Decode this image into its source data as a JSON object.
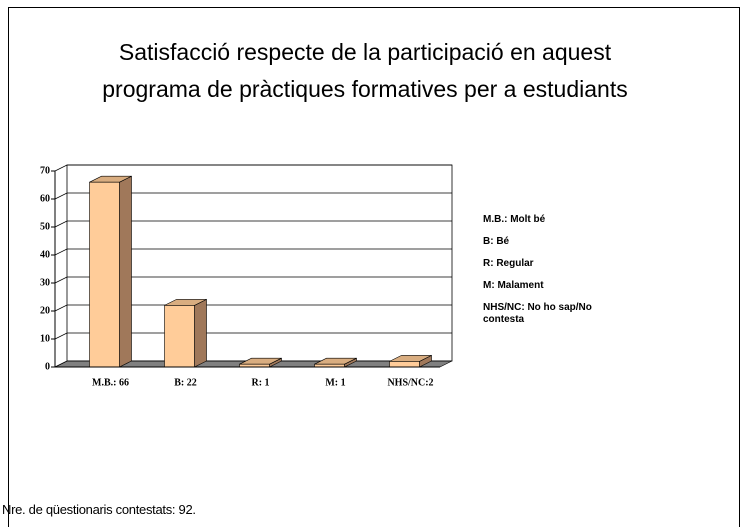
{
  "chart_data": {
    "type": "bar",
    "title": "Satisfacció respecte de la participació en aquest programa de pràctiques formatives per a estudiants",
    "categories": [
      "M.B.: 66",
      "B: 22",
      "R: 1",
      "M: 1",
      "NHS/NC:2"
    ],
    "values": [
      66,
      22,
      1,
      1,
      2
    ],
    "color": "#ffcc99",
    "ylim": [
      0,
      70
    ],
    "yticks": [
      0,
      10,
      20,
      30,
      40,
      50,
      60,
      70
    ],
    "grid": true,
    "notes": [
      "M.B.: Molt bé",
      "B: Bé",
      "R: Regular",
      "M: Malament",
      "NHS/NC: No ho sap/No contesta"
    ],
    "footer": "Nre. de qüestionaris contestats: 92."
  }
}
